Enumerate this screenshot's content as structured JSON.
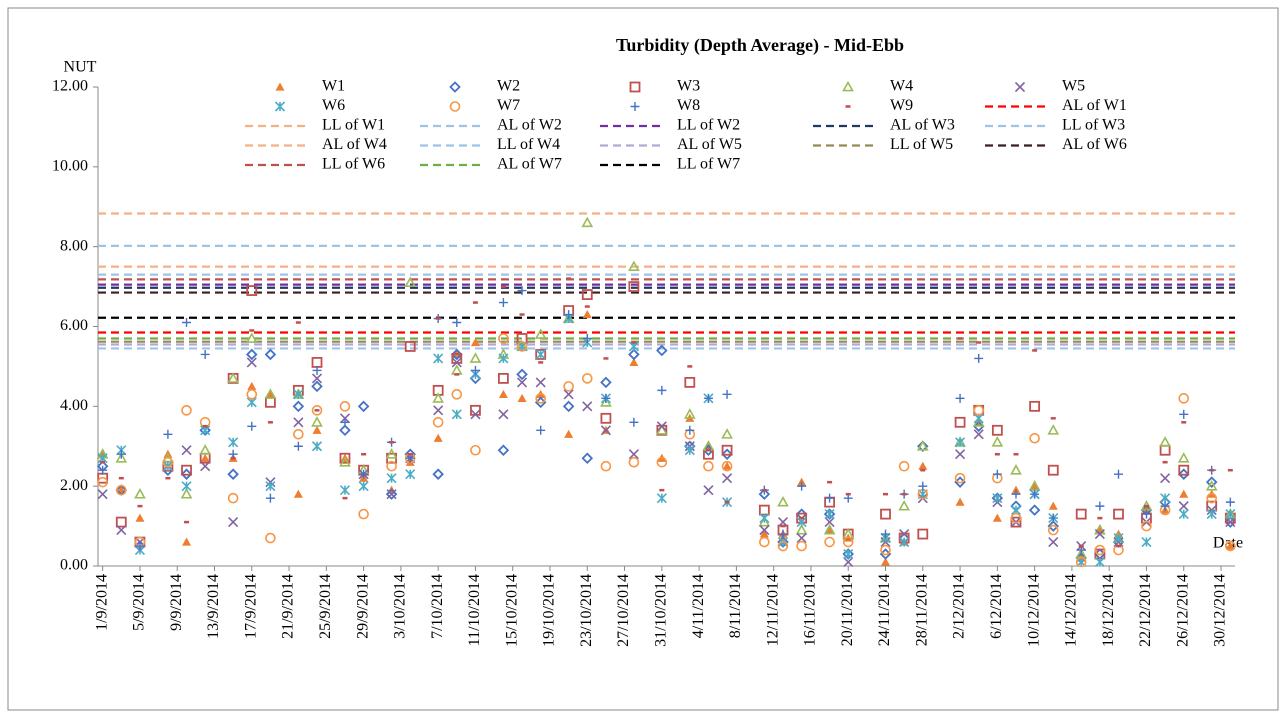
{
  "chart_data": {
    "type": "scatter",
    "title": "Turbidity (Depth Average) - Mid-Ebb",
    "y_label": "NUT",
    "x_label": "Date",
    "ylim": [
      0,
      12
    ],
    "yticks": [
      {
        "value": 0,
        "label": "0.00"
      },
      {
        "value": 2,
        "label": "2.00"
      },
      {
        "value": 4,
        "label": "4.00"
      },
      {
        "value": 6,
        "label": "6.00"
      },
      {
        "value": 8,
        "label": "8.00"
      },
      {
        "value": 10,
        "label": "10.00"
      },
      {
        "value": 12,
        "label": "12.00"
      }
    ],
    "xlim": [
      "1/9/2014",
      "31/12/2014"
    ],
    "xticks": [
      "1/9/2014",
      "5/9/2014",
      "9/9/2014",
      "13/9/2014",
      "17/9/2014",
      "21/9/2014",
      "25/9/2014",
      "29/9/2014",
      "3/10/2014",
      "7/10/2014",
      "11/10/2014",
      "15/10/2014",
      "19/10/2014",
      "23/10/2014",
      "27/10/2014",
      "31/10/2014",
      "4/11/2014",
      "8/11/2014",
      "12/11/2014",
      "16/11/2014",
      "20/11/2014",
      "24/11/2014",
      "28/11/2014",
      "2/12/2014",
      "6/12/2014",
      "10/12/2014",
      "14/12/2014",
      "18/12/2014",
      "22/12/2014",
      "26/12/2014",
      "30/12/2014"
    ],
    "x": [
      "1/9/2014",
      "3/9/2014",
      "5/9/2014",
      "8/9/2014",
      "10/9/2014",
      "12/9/2014",
      "15/9/2014",
      "17/9/2014",
      "19/9/2014",
      "22/9/2014",
      "24/9/2014",
      "27/9/2014",
      "29/9/2014",
      "2/10/2014",
      "4/10/2014",
      "7/10/2014",
      "9/10/2014",
      "11/10/2014",
      "14/10/2014",
      "16/10/2014",
      "18/10/2014",
      "21/10/2014",
      "23/10/2014",
      "25/10/2014",
      "28/10/2014",
      "31/10/2014",
      "3/11/2014",
      "5/11/2014",
      "7/11/2014",
      "11/11/2014",
      "13/11/2014",
      "15/11/2014",
      "18/11/2014",
      "20/11/2014",
      "24/11/2014",
      "26/11/2014",
      "28/11/2014",
      "2/12/2014",
      "4/12/2014",
      "6/12/2014",
      "8/12/2014",
      "10/12/2014",
      "12/12/2014",
      "15/12/2014",
      "17/12/2014",
      "19/12/2014",
      "22/12/2014",
      "24/12/2014",
      "26/12/2014",
      "29/12/2014",
      "31/12/2014"
    ],
    "series": [
      {
        "name": "W1",
        "color": "#ed7d31",
        "marker": "triangle",
        "values": [
          2.8,
          1.9,
          1.2,
          2.8,
          0.6,
          2.7,
          2.7,
          4.5,
          4.3,
          1.8,
          3.4,
          2.7,
          2.2,
          1.9,
          2.6,
          3.2,
          5.3,
          5.6,
          4.3,
          4.2,
          4.3,
          3.3,
          6.3,
          3.4,
          5.1,
          2.7,
          3.7,
          3.0,
          2.5,
          0.8,
          0.8,
          2.1,
          0.9,
          0.7,
          0.1,
          0.6,
          2.5,
          1.6,
          3.6,
          1.2,
          1.9,
          2.0,
          1.5,
          0.2,
          0.9,
          0.8,
          1.4,
          1.4,
          1.8,
          1.8,
          0.5
        ]
      },
      {
        "name": "W2",
        "color": "#4472c4",
        "marker": "diamond",
        "values": [
          2.5,
          1.9,
          0.5,
          2.4,
          2.3,
          3.4,
          2.3,
          5.3,
          5.3,
          4.0,
          4.5,
          3.4,
          4.0,
          1.8,
          2.8,
          2.3,
          5.3,
          4.7,
          2.9,
          4.8,
          4.1,
          4.0,
          2.7,
          4.6,
          5.3,
          5.4,
          3.0,
          2.9,
          2.8,
          1.8,
          0.6,
          1.3,
          1.3,
          0.3,
          0.3,
          0.7,
          3.0,
          2.1,
          3.5,
          1.7,
          1.5,
          1.4,
          1.0,
          0.2,
          0.3,
          0.6,
          1.4,
          1.6,
          2.3,
          2.1,
          1.1
        ]
      },
      {
        "name": "W3",
        "color": "#c0504d",
        "marker": "square",
        "values": [
          2.2,
          1.1,
          0.6,
          2.5,
          2.4,
          2.7,
          4.7,
          6.9,
          4.1,
          4.4,
          5.1,
          2.7,
          2.4,
          2.7,
          5.5,
          4.4,
          5.2,
          3.9,
          4.7,
          5.7,
          5.3,
          6.4,
          6.8,
          3.7,
          7.0,
          3.4,
          4.6,
          2.8,
          2.9,
          1.4,
          0.9,
          1.2,
          1.6,
          0.8,
          1.3,
          0.7,
          0.8,
          3.6,
          3.9,
          3.4,
          1.1,
          4.0,
          2.4,
          1.3,
          0.3,
          1.3,
          1.2,
          2.9,
          2.4,
          1.5,
          1.2
        ]
      },
      {
        "name": "W4",
        "color": "#9bbb59",
        "marker": "triangle-open",
        "values": [
          2.8,
          2.7,
          1.8,
          2.7,
          1.8,
          2.9,
          4.7,
          5.7,
          4.3,
          4.3,
          3.6,
          2.6,
          2.4,
          2.8,
          7.1,
          4.2,
          4.9,
          5.2,
          5.3,
          5.5,
          5.8,
          6.2,
          8.6,
          4.1,
          7.5,
          3.4,
          3.8,
          3.0,
          3.3,
          1.1,
          1.6,
          0.9,
          0.9,
          0.8,
          0.7,
          1.5,
          3.0,
          3.1,
          3.6,
          3.1,
          2.4,
          2.0,
          3.4,
          0.3,
          0.9,
          0.7,
          1.5,
          3.1,
          2.7,
          2.0,
          1.3
        ]
      },
      {
        "name": "W5",
        "color": "#8064a2",
        "marker": "x",
        "values": [
          1.8,
          0.9,
          0.6,
          2.5,
          2.9,
          2.5,
          1.1,
          5.1,
          2.1,
          3.6,
          4.7,
          3.7,
          2.3,
          1.8,
          2.7,
          3.9,
          5.1,
          3.8,
          3.8,
          4.6,
          4.6,
          4.3,
          4.0,
          3.4,
          2.8,
          3.5,
          3.0,
          1.9,
          2.2,
          0.9,
          1.1,
          0.7,
          1.1,
          0.1,
          0.6,
          0.8,
          1.7,
          2.8,
          3.3,
          1.6,
          1.1,
          1.8,
          0.6,
          0.5,
          0.8,
          0.6,
          1.1,
          2.2,
          1.5,
          1.4,
          1.1
        ]
      },
      {
        "name": "W6",
        "color": "#4bacc6",
        "marker": "asterisk",
        "values": [
          2.7,
          2.9,
          0.4,
          2.5,
          2.0,
          3.4,
          3.1,
          4.1,
          2.0,
          4.3,
          3.0,
          1.9,
          2.0,
          2.2,
          2.3,
          5.2,
          3.8,
          4.8,
          5.2,
          5.5,
          5.3,
          6.2,
          5.6,
          4.2,
          5.5,
          1.7,
          2.9,
          4.2,
          1.6,
          1.2,
          0.6,
          1.1,
          1.3,
          0.3,
          0.7,
          0.6,
          1.8,
          3.1,
          3.7,
          1.7,
          1.4,
          1.8,
          1.2,
          0.1,
          0.1,
          0.7,
          0.6,
          1.7,
          1.3,
          1.3,
          1.3
        ]
      },
      {
        "name": "W7",
        "color": "#f79646",
        "marker": "circle-open",
        "values": [
          2.1,
          1.9,
          0.6,
          2.6,
          3.9,
          3.6,
          1.7,
          4.3,
          0.7,
          3.3,
          3.9,
          4.0,
          1.3,
          2.5,
          2.7,
          3.6,
          4.3,
          2.9,
          5.7,
          5.5,
          4.2,
          4.5,
          4.7,
          2.5,
          2.6,
          2.6,
          3.3,
          2.5,
          2.5,
          0.6,
          0.5,
          0.5,
          0.6,
          0.6,
          0.4,
          2.5,
          1.8,
          2.2,
          3.9,
          2.2,
          1.2,
          3.2,
          0.9,
          0.1,
          0.4,
          0.4,
          1.0,
          1.4,
          4.2,
          1.7,
          0.5
        ]
      },
      {
        "name": "W8",
        "color": "#4472c4",
        "marker": "plus",
        "values": [
          2.4,
          2.8,
          0.5,
          3.3,
          6.1,
          5.3,
          2.8,
          3.5,
          1.7,
          3.0,
          4.9,
          3.6,
          2.3,
          3.1,
          2.7,
          6.2,
          6.1,
          4.9,
          6.6,
          6.9,
          3.4,
          6.3,
          5.7,
          4.2,
          3.6,
          4.4,
          3.4,
          4.2,
          4.3,
          1.9,
          0.8,
          2.0,
          1.7,
          1.7,
          0.8,
          1.8,
          2.0,
          4.2,
          5.2,
          2.3,
          1.8,
          1.8,
          1.2,
          0.4,
          1.5,
          2.3,
          1.3,
          1.5,
          3.8,
          2.4,
          1.6
        ]
      },
      {
        "name": "W9",
        "color": "#c0504d",
        "marker": "dash",
        "values": [
          2.6,
          2.2,
          1.5,
          2.2,
          1.1,
          3.5,
          2.7,
          5.9,
          3.6,
          6.1,
          3.9,
          1.7,
          2.8,
          3.1,
          2.8,
          6.2,
          4.8,
          6.6,
          7.0,
          6.3,
          5.1,
          7.2,
          6.5,
          5.2,
          5.6,
          1.9,
          5.0,
          2.9,
          1.6,
          1.9,
          1.0,
          1.2,
          2.1,
          1.8,
          1.8,
          1.8,
          2.4,
          5.7,
          5.6,
          2.8,
          2.8,
          5.4,
          3.7,
          0.5,
          1.2,
          0.5,
          1.5,
          2.6,
          3.6,
          2.4,
          2.4
        ]
      }
    ],
    "reference_lines": [
      {
        "name": "AL of W1",
        "color": "#ff0000",
        "value": 5.85
      },
      {
        "name": "LL of W1",
        "color": "#f4b183",
        "value": 8.83
      },
      {
        "name": "AL of W2",
        "color": "#9dc3e6",
        "value": 8.02
      },
      {
        "name": "LL of W2",
        "color": "#7030a0",
        "value": 7.05
      },
      {
        "name": "AL of W3",
        "color": "#1f3864",
        "value": 6.97
      },
      {
        "name": "LL of W3",
        "color": "#9dc3e6",
        "value": 7.3
      },
      {
        "name": "AL of W4",
        "color": "#f4b183",
        "value": 7.5
      },
      {
        "name": "LL of W4",
        "color": "#9dc3e6",
        "value": 5.45
      },
      {
        "name": "AL of W5",
        "color": "#b4a7d6",
        "value": 5.55
      },
      {
        "name": "LL of W5",
        "color": "#948a54",
        "value": 5.62
      },
      {
        "name": "AL of W6",
        "color": "#3b1f1f",
        "value": 6.85
      },
      {
        "name": "LL of W6",
        "color": "#c0504d",
        "value": 7.18
      },
      {
        "name": "AL of W7",
        "color": "#70ad47",
        "value": 5.7
      },
      {
        "name": "LL of W7",
        "color": "#000000",
        "value": 6.22
      }
    ]
  }
}
